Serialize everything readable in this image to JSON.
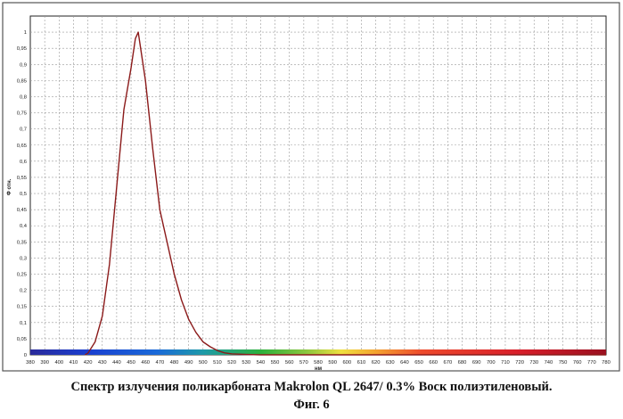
{
  "chart_data": {
    "type": "line",
    "title": "",
    "xlabel": "нм",
    "ylabel": "Ф отн.",
    "xlim": [
      380,
      780
    ],
    "ylim": [
      0,
      1.05
    ],
    "x_ticks": [
      380,
      390,
      400,
      410,
      420,
      430,
      440,
      450,
      460,
      470,
      480,
      490,
      500,
      510,
      520,
      530,
      540,
      550,
      560,
      570,
      580,
      590,
      600,
      610,
      620,
      630,
      640,
      650,
      660,
      670,
      680,
      690,
      700,
      710,
      720,
      730,
      740,
      750,
      760,
      770,
      780
    ],
    "y_ticks": [
      "0",
      "0,05",
      "0,1",
      "0,15",
      "0,2",
      "0,25",
      "0,3",
      "0,35",
      "0,4",
      "0,45",
      "0,5",
      "0,55",
      "0,6",
      "0,65",
      "0,7",
      "0,75",
      "0,8",
      "0,85",
      "0,9",
      "0,95",
      "1"
    ],
    "y_tick_values": [
      0,
      0.05,
      0.1,
      0.15,
      0.2,
      0.25,
      0.3,
      0.35,
      0.4,
      0.45,
      0.5,
      0.55,
      0.6,
      0.65,
      0.7,
      0.75,
      0.8,
      0.85,
      0.9,
      0.95,
      1
    ],
    "grid": true,
    "series": [
      {
        "color": "#8b1a1a",
        "x": [
          418,
          420,
          425,
          430,
          435,
          440,
          445,
          450,
          453,
          455,
          460,
          465,
          470,
          475,
          480,
          485,
          490,
          495,
          500,
          505,
          510,
          515,
          520,
          530,
          540,
          560,
          600,
          700,
          780
        ],
        "y": [
          0,
          0.005,
          0.04,
          0.12,
          0.28,
          0.52,
          0.76,
          0.89,
          0.98,
          1.0,
          0.85,
          0.64,
          0.45,
          0.35,
          0.25,
          0.17,
          0.11,
          0.07,
          0.04,
          0.025,
          0.013,
          0.006,
          0.003,
          0.001,
          0,
          0,
          0,
          0,
          0
        ]
      }
    ]
  },
  "caption": {
    "line1": "Спектр излучения поликарбоната Makrolon QL 2647/ 0.3% Воск полиэтиленовый.",
    "line2": "Фиг. 6"
  }
}
